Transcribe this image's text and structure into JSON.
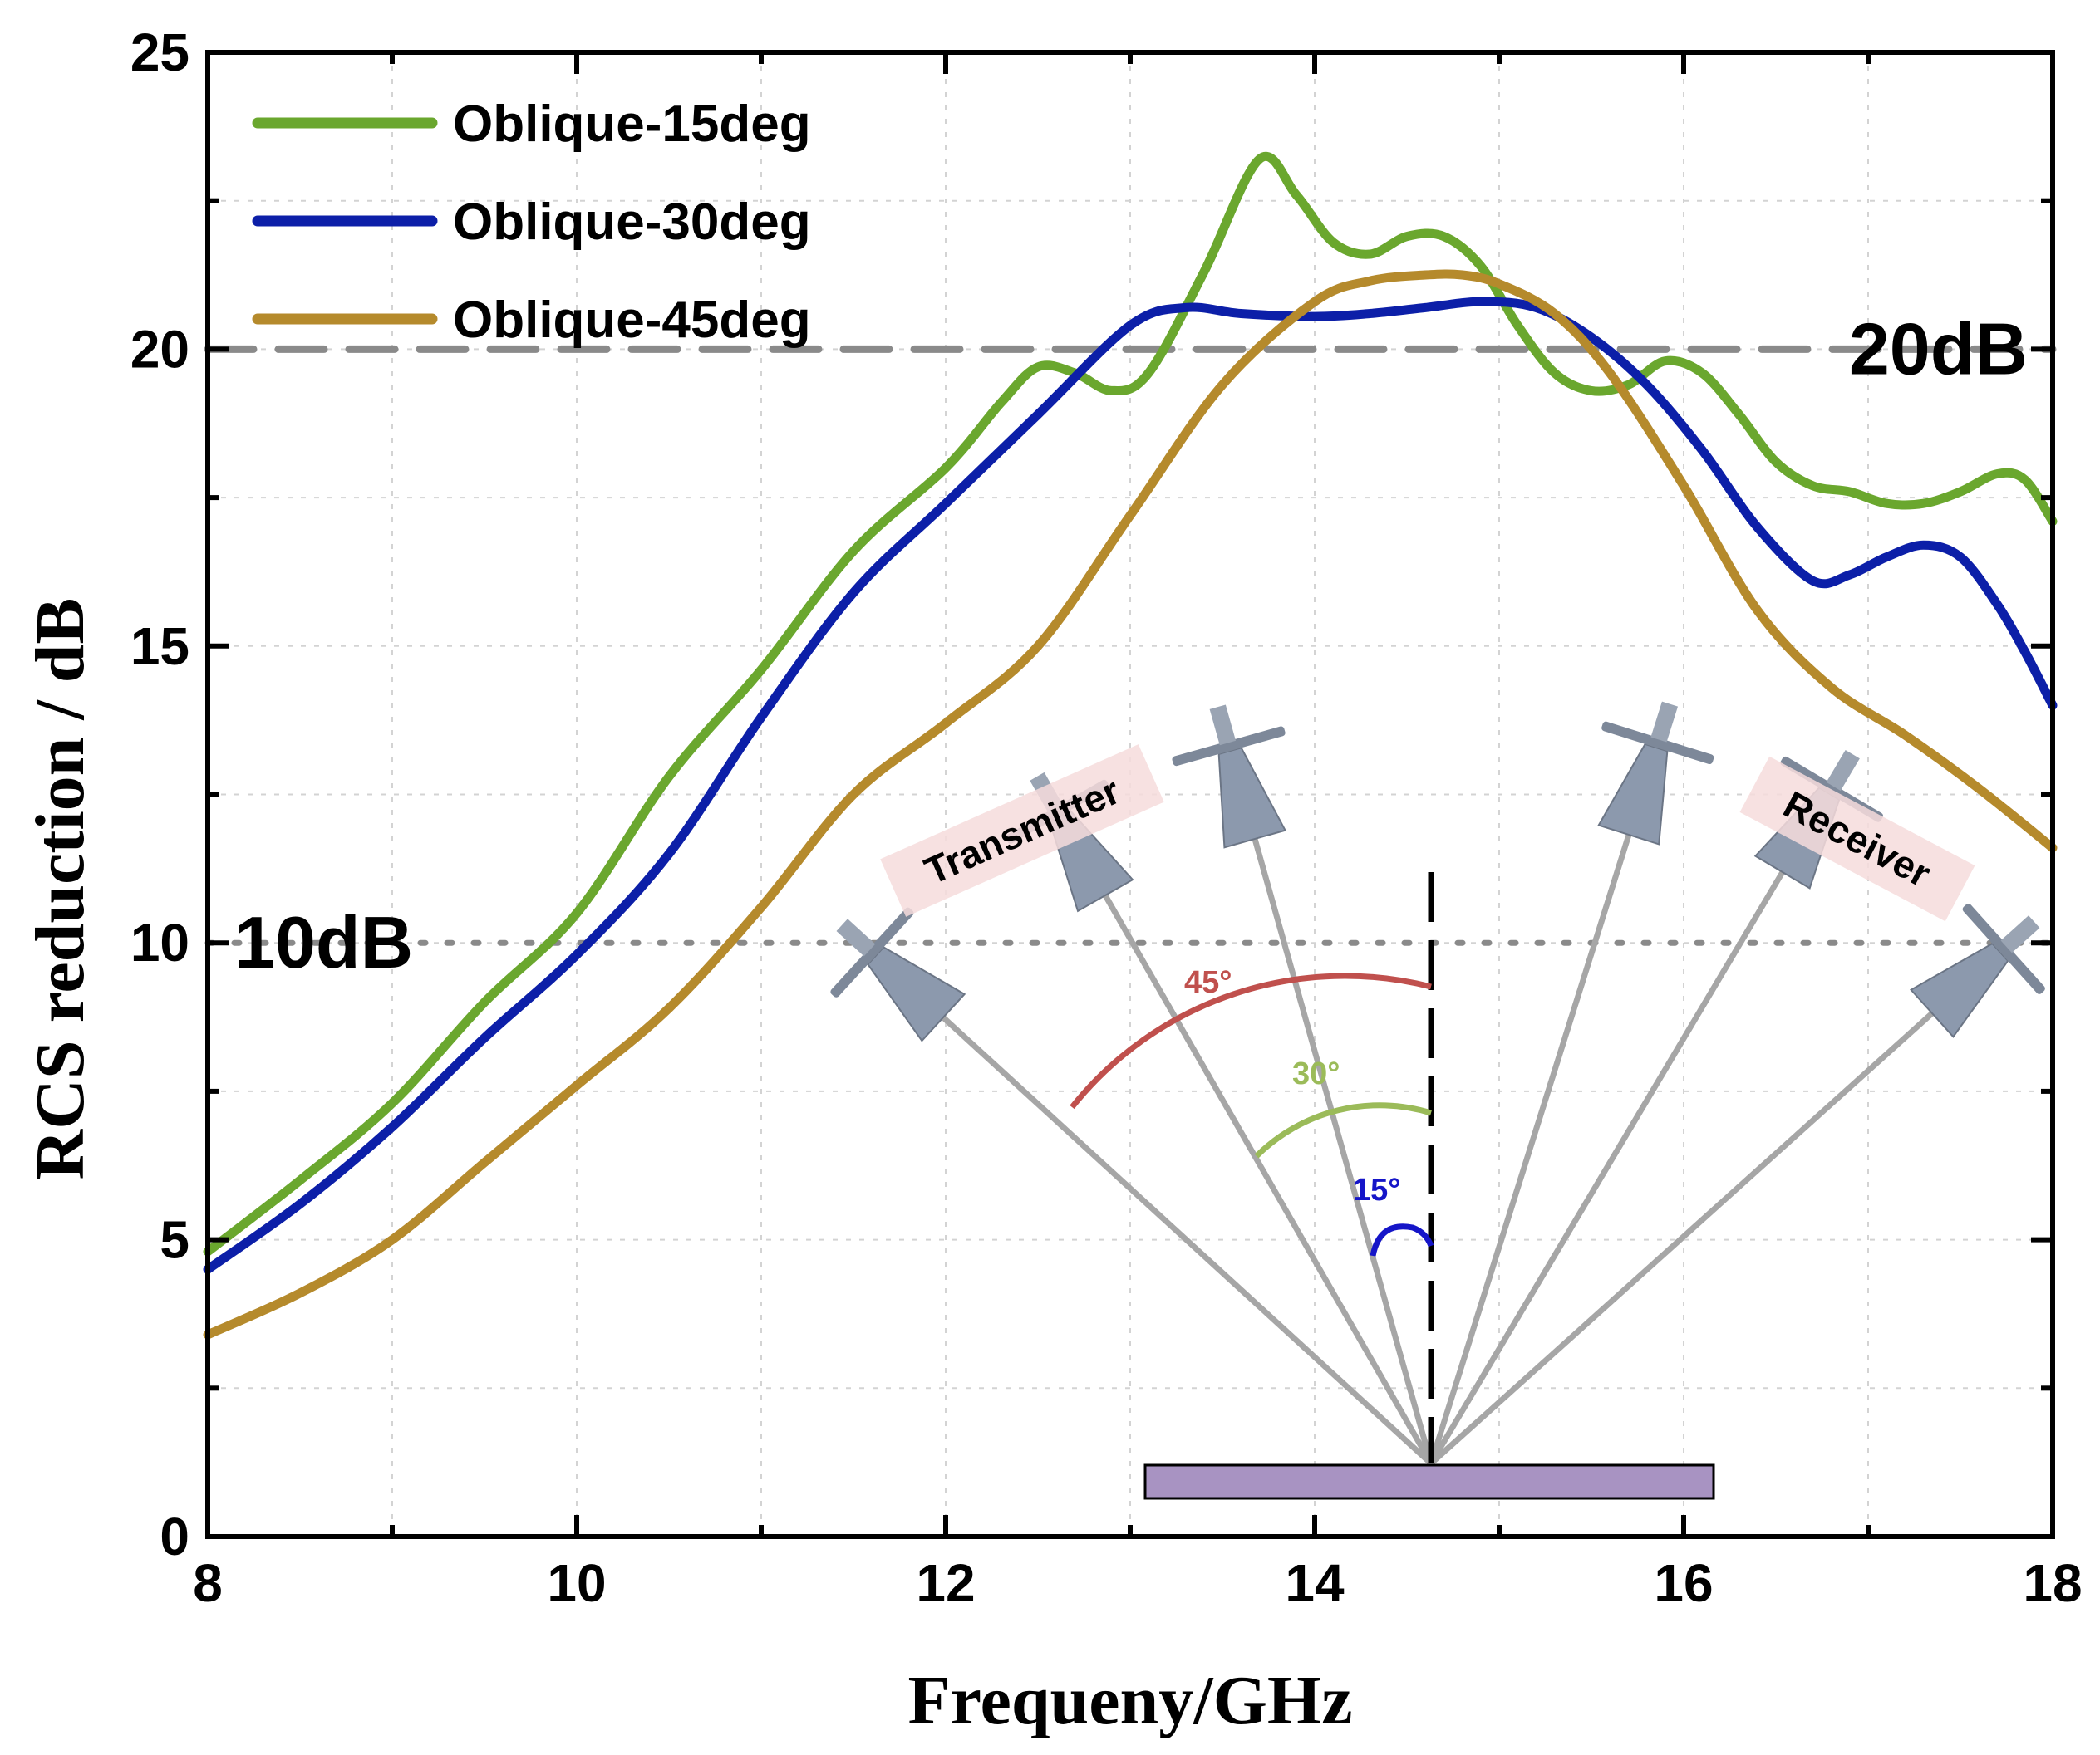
{
  "chart_data": {
    "type": "line",
    "title": "",
    "xlabel": "Frequeny/GHz",
    "ylabel": "RCS reduction / dB",
    "xlim": [
      8,
      18
    ],
    "ylim": [
      0,
      25
    ],
    "x_ticks": [
      "8",
      "10",
      "12",
      "14",
      "16",
      "18"
    ],
    "y_ticks": [
      "0",
      "5",
      "10",
      "15",
      "20",
      "25"
    ],
    "grid": true,
    "legend_position": "top-left",
    "series": [
      {
        "name": "Oblique-15deg",
        "color": "#6aa72e",
        "x": [
          8.0,
          8.5,
          9.0,
          9.5,
          10.0,
          10.5,
          11.0,
          11.5,
          12.0,
          12.3,
          12.5,
          12.7,
          12.9,
          13.1,
          13.4,
          13.7,
          13.9,
          14.1,
          14.3,
          14.5,
          14.7,
          14.9,
          15.1,
          15.3,
          15.5,
          15.7,
          15.9,
          16.1,
          16.3,
          16.5,
          16.7,
          16.9,
          17.1,
          17.3,
          17.5,
          17.7,
          17.85,
          18.0
        ],
        "y": [
          4.8,
          6.0,
          7.3,
          9.0,
          10.5,
          12.8,
          14.6,
          16.6,
          18.0,
          19.1,
          19.7,
          19.6,
          19.3,
          19.6,
          21.3,
          23.2,
          22.6,
          21.8,
          21.6,
          21.9,
          21.9,
          21.4,
          20.4,
          19.6,
          19.3,
          19.4,
          19.8,
          19.6,
          18.9,
          18.1,
          17.7,
          17.6,
          17.4,
          17.4,
          17.6,
          17.9,
          17.8,
          17.1
        ]
      },
      {
        "name": "Oblique-30deg",
        "color": "#0c1fa8",
        "x": [
          8.0,
          8.5,
          9.0,
          9.5,
          10.0,
          10.5,
          11.0,
          11.5,
          12.0,
          12.5,
          13.0,
          13.3,
          13.6,
          14.0,
          14.3,
          14.6,
          14.9,
          15.2,
          15.5,
          15.8,
          16.1,
          16.4,
          16.7,
          16.9,
          17.1,
          17.3,
          17.5,
          17.7,
          17.85,
          18.0
        ],
        "y": [
          4.5,
          5.6,
          6.9,
          8.4,
          9.8,
          11.5,
          13.8,
          15.9,
          17.4,
          18.9,
          20.4,
          20.7,
          20.6,
          20.55,
          20.6,
          20.7,
          20.8,
          20.7,
          20.2,
          19.4,
          18.3,
          17.0,
          16.1,
          16.2,
          16.5,
          16.7,
          16.5,
          15.7,
          14.9,
          14.0
        ]
      },
      {
        "name": "Oblique-45deg",
        "color": "#b58a2c",
        "x": [
          8.0,
          8.5,
          9.0,
          9.5,
          10.0,
          10.5,
          11.0,
          11.5,
          12.0,
          12.5,
          13.0,
          13.5,
          14.0,
          14.3,
          14.6,
          14.8,
          15.0,
          15.3,
          15.6,
          16.0,
          16.4,
          16.8,
          17.2,
          17.6,
          18.0
        ],
        "y": [
          3.4,
          4.1,
          5.0,
          6.3,
          7.6,
          8.9,
          10.6,
          12.5,
          13.7,
          15.0,
          17.2,
          19.4,
          20.8,
          21.15,
          21.25,
          21.25,
          21.1,
          20.6,
          19.6,
          17.7,
          15.6,
          14.3,
          13.5,
          12.6,
          11.6
        ]
      }
    ],
    "reference_lines": [
      {
        "y": 20,
        "label": "20dB",
        "style": "dashed",
        "color": "#8a8a8a"
      },
      {
        "y": 10,
        "label": "10dB",
        "style": "dotted",
        "color": "#8a8a8a"
      }
    ]
  },
  "inset": {
    "transmitter_label": "Transmitter",
    "receiver_label": "Receiver",
    "angles": [
      {
        "label": "45°",
        "color": "#c0504d"
      },
      {
        "label": "30°",
        "color": "#9bbb59"
      },
      {
        "label": "15°",
        "color": "#1515c8"
      }
    ],
    "ray_color": "#a6a6a6",
    "surface_color": "#a893c2",
    "horn_color": "#8c99ad"
  }
}
